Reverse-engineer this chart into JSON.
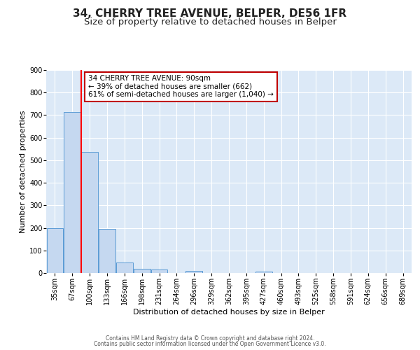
{
  "title": "34, CHERRY TREE AVENUE, BELPER, DE56 1FR",
  "subtitle": "Size of property relative to detached houses in Belper",
  "xlabel": "Distribution of detached houses by size in Belper",
  "ylabel": "Number of detached properties",
  "bin_labels": [
    "35sqm",
    "67sqm",
    "100sqm",
    "133sqm",
    "166sqm",
    "198sqm",
    "231sqm",
    "264sqm",
    "296sqm",
    "329sqm",
    "362sqm",
    "395sqm",
    "427sqm",
    "460sqm",
    "493sqm",
    "525sqm",
    "558sqm",
    "591sqm",
    "624sqm",
    "656sqm",
    "689sqm"
  ],
  "bar_heights": [
    200,
    715,
    537,
    195,
    46,
    20,
    14,
    0,
    10,
    0,
    0,
    0,
    7,
    0,
    0,
    0,
    0,
    0,
    0,
    0,
    0
  ],
  "bar_color": "#c5d8f0",
  "bar_edgecolor": "#5b9bd5",
  "vline_color": "#ff0000",
  "annotation_title": "34 CHERRY TREE AVENUE: 90sqm",
  "annotation_line1": "← 39% of detached houses are smaller (662)",
  "annotation_line2": "61% of semi-detached houses are larger (1,040) →",
  "annotation_box_color": "#ffffff",
  "annotation_box_edgecolor": "#c00000",
  "ylim": [
    0,
    900
  ],
  "yticks": [
    0,
    100,
    200,
    300,
    400,
    500,
    600,
    700,
    800,
    900
  ],
  "footer1": "Contains HM Land Registry data © Crown copyright and database right 2024.",
  "footer2": "Contains public sector information licensed under the Open Government Licence v3.0.",
  "plot_bg_color": "#dce9f7",
  "fig_bg_color": "#ffffff",
  "title_fontsize": 11,
  "subtitle_fontsize": 9.5,
  "axis_fontsize": 8,
  "tick_fontsize": 7,
  "footer_fontsize": 5.5
}
